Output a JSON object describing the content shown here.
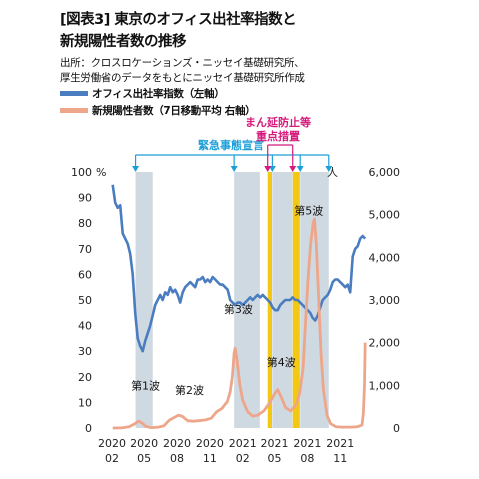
{
  "title_line1": "[図表3] 東京のオフィス出社率指数と",
  "title_line2": "新規陽性者数の推移",
  "source_line1": "出所：クロスロケーションズ・ニッセイ基礎研究所、",
  "source_line2": "厚生労働省のデータをもとにニッセイ基礎研究所作成",
  "chart_data": {
    "type": "line",
    "title": "東京のオフィス出社率指数と新規陽性者数の推移",
    "x_start": "2020-02",
    "x_end": "2022-01",
    "x_ticks": [
      {
        "date": "2020-02",
        "year": "2020",
        "month": "02"
      },
      {
        "date": "2020-05",
        "year": "2020",
        "month": "05"
      },
      {
        "date": "2020-08",
        "year": "2020",
        "month": "08"
      },
      {
        "date": "2020-11",
        "year": "2020",
        "month": "11"
      },
      {
        "date": "2021-02",
        "year": "2021",
        "month": "02"
      },
      {
        "date": "2021-05",
        "year": "2021",
        "month": "05"
      },
      {
        "date": "2021-08",
        "year": "2021",
        "month": "08"
      },
      {
        "date": "2021-11",
        "year": "2021",
        "month": "11"
      }
    ],
    "y_left": {
      "unit": "%",
      "min": 0,
      "max": 100,
      "ticks": [
        "0",
        "10",
        "20",
        "30",
        "40",
        "50",
        "60",
        "70",
        "80",
        "90",
        "100"
      ]
    },
    "y_right": {
      "unit": "人",
      "min": 0,
      "max": 6000,
      "ticks": [
        "0",
        "1,000",
        "2,000",
        "3,000",
        "4,000",
        "5,000",
        "6,000"
      ]
    },
    "grid": false,
    "series": [
      {
        "name": "オフィス出社率指数（左軸）",
        "axis": "left",
        "color": "#4a7cc0",
        "points": [
          [
            "2020-02-03",
            95
          ],
          [
            "2020-02-10",
            88
          ],
          [
            "2020-02-17",
            86
          ],
          [
            "2020-02-24",
            87
          ],
          [
            "2020-03-02",
            76
          ],
          [
            "2020-03-09",
            74
          ],
          [
            "2020-03-16",
            72
          ],
          [
            "2020-03-23",
            68
          ],
          [
            "2020-03-30",
            60
          ],
          [
            "2020-04-06",
            45
          ],
          [
            "2020-04-13",
            35
          ],
          [
            "2020-04-20",
            32
          ],
          [
            "2020-04-27",
            30
          ],
          [
            "2020-05-04",
            34
          ],
          [
            "2020-05-11",
            37
          ],
          [
            "2020-05-18",
            40
          ],
          [
            "2020-05-25",
            44
          ],
          [
            "2020-06-01",
            48
          ],
          [
            "2020-06-08",
            50
          ],
          [
            "2020-06-15",
            52
          ],
          [
            "2020-06-22",
            50
          ],
          [
            "2020-06-29",
            53
          ],
          [
            "2020-07-06",
            52
          ],
          [
            "2020-07-13",
            55
          ],
          [
            "2020-07-20",
            53
          ],
          [
            "2020-07-27",
            54
          ],
          [
            "2020-08-03",
            52
          ],
          [
            "2020-08-10",
            49
          ],
          [
            "2020-08-17",
            53
          ],
          [
            "2020-08-24",
            55
          ],
          [
            "2020-08-31",
            56
          ],
          [
            "2020-09-07",
            57
          ],
          [
            "2020-09-14",
            56
          ],
          [
            "2020-09-21",
            55
          ],
          [
            "2020-09-28",
            58
          ],
          [
            "2020-10-05",
            58
          ],
          [
            "2020-10-12",
            59
          ],
          [
            "2020-10-19",
            57
          ],
          [
            "2020-10-26",
            58
          ],
          [
            "2020-11-02",
            57
          ],
          [
            "2020-11-09",
            59
          ],
          [
            "2020-11-16",
            58
          ],
          [
            "2020-11-23",
            57
          ],
          [
            "2020-11-30",
            56
          ],
          [
            "2020-12-07",
            56
          ],
          [
            "2020-12-14",
            55
          ],
          [
            "2020-12-21",
            54
          ],
          [
            "2020-12-28",
            50
          ],
          [
            "2021-01-04",
            49
          ],
          [
            "2021-01-11",
            48
          ],
          [
            "2021-01-18",
            49
          ],
          [
            "2021-01-25",
            49
          ],
          [
            "2021-02-01",
            48
          ],
          [
            "2021-02-08",
            49
          ],
          [
            "2021-02-15",
            50
          ],
          [
            "2021-02-22",
            51
          ],
          [
            "2021-03-01",
            50
          ],
          [
            "2021-03-08",
            51
          ],
          [
            "2021-03-15",
            52
          ],
          [
            "2021-03-22",
            51
          ],
          [
            "2021-03-29",
            52
          ],
          [
            "2021-04-05",
            51
          ],
          [
            "2021-04-12",
            50
          ],
          [
            "2021-04-19",
            49
          ],
          [
            "2021-04-26",
            47
          ],
          [
            "2021-05-03",
            46
          ],
          [
            "2021-05-10",
            46
          ],
          [
            "2021-05-17",
            48
          ],
          [
            "2021-05-24",
            49
          ],
          [
            "2021-05-31",
            50
          ],
          [
            "2021-06-07",
            50
          ],
          [
            "2021-06-14",
            50
          ],
          [
            "2021-06-21",
            51
          ],
          [
            "2021-06-28",
            50
          ],
          [
            "2021-07-05",
            50
          ],
          [
            "2021-07-12",
            49
          ],
          [
            "2021-07-19",
            48
          ],
          [
            "2021-07-26",
            47
          ],
          [
            "2021-08-02",
            46
          ],
          [
            "2021-08-09",
            45
          ],
          [
            "2021-08-16",
            43
          ],
          [
            "2021-08-23",
            42
          ],
          [
            "2021-08-30",
            44
          ],
          [
            "2021-09-06",
            47
          ],
          [
            "2021-09-13",
            50
          ],
          [
            "2021-09-20",
            51
          ],
          [
            "2021-09-27",
            52
          ],
          [
            "2021-10-04",
            54
          ],
          [
            "2021-10-11",
            57
          ],
          [
            "2021-10-18",
            58
          ],
          [
            "2021-10-25",
            58
          ],
          [
            "2021-11-01",
            57
          ],
          [
            "2021-11-08",
            56
          ],
          [
            "2021-11-15",
            55
          ],
          [
            "2021-11-22",
            56
          ],
          [
            "2021-11-29",
            53
          ],
          [
            "2021-12-06",
            67
          ],
          [
            "2021-12-13",
            70
          ],
          [
            "2021-12-20",
            71
          ],
          [
            "2021-12-27",
            74
          ],
          [
            "2022-01-03",
            75
          ],
          [
            "2022-01-10",
            74
          ]
        ]
      },
      {
        "name": "新規陽性者数（7日移動平均 右軸）",
        "axis": "right",
        "color": "#eda68a",
        "points": [
          [
            "2020-02-03",
            0
          ],
          [
            "2020-03-01",
            5
          ],
          [
            "2020-03-20",
            30
          ],
          [
            "2020-04-05",
            100
          ],
          [
            "2020-04-15",
            160
          ],
          [
            "2020-04-25",
            120
          ],
          [
            "2020-05-05",
            40
          ],
          [
            "2020-05-20",
            10
          ],
          [
            "2020-06-10",
            20
          ],
          [
            "2020-06-25",
            50
          ],
          [
            "2020-07-10",
            180
          ],
          [
            "2020-07-25",
            250
          ],
          [
            "2020-08-05",
            300
          ],
          [
            "2020-08-15",
            280
          ],
          [
            "2020-08-31",
            170
          ],
          [
            "2020-09-15",
            160
          ],
          [
            "2020-10-01",
            170
          ],
          [
            "2020-10-20",
            190
          ],
          [
            "2020-11-05",
            230
          ],
          [
            "2020-11-20",
            380
          ],
          [
            "2020-12-05",
            460
          ],
          [
            "2020-12-20",
            620
          ],
          [
            "2020-12-28",
            850
          ],
          [
            "2021-01-03",
            1200
          ],
          [
            "2021-01-08",
            1750
          ],
          [
            "2021-01-11",
            1870
          ],
          [
            "2021-01-16",
            1600
          ],
          [
            "2021-01-24",
            1000
          ],
          [
            "2021-02-01",
            650
          ],
          [
            "2021-02-15",
            380
          ],
          [
            "2021-03-01",
            280
          ],
          [
            "2021-03-15",
            300
          ],
          [
            "2021-04-01",
            400
          ],
          [
            "2021-04-15",
            560
          ],
          [
            "2021-05-01",
            800
          ],
          [
            "2021-05-10",
            900
          ],
          [
            "2021-05-20",
            720
          ],
          [
            "2021-06-01",
            480
          ],
          [
            "2021-06-15",
            400
          ],
          [
            "2021-07-01",
            550
          ],
          [
            "2021-07-10",
            800
          ],
          [
            "2021-07-20",
            1400
          ],
          [
            "2021-07-27",
            2500
          ],
          [
            "2021-08-03",
            3500
          ],
          [
            "2021-08-10",
            4300
          ],
          [
            "2021-08-17",
            4800
          ],
          [
            "2021-08-21",
            4900
          ],
          [
            "2021-08-26",
            4300
          ],
          [
            "2021-09-01",
            3200
          ],
          [
            "2021-09-08",
            1800
          ],
          [
            "2021-09-15",
            900
          ],
          [
            "2021-09-25",
            300
          ],
          [
            "2021-10-05",
            100
          ],
          [
            "2021-10-20",
            30
          ],
          [
            "2021-11-05",
            20
          ],
          [
            "2021-12-01",
            20
          ],
          [
            "2021-12-20",
            30
          ],
          [
            "2022-01-01",
            70
          ],
          [
            "2022-01-05",
            350
          ],
          [
            "2022-01-08",
            1000
          ],
          [
            "2022-01-10",
            2000
          ]
        ]
      }
    ],
    "periods": [
      {
        "type": "emergency",
        "start": "2020-04-07",
        "end": "2020-05-25",
        "color": "#cfd9e2"
      },
      {
        "type": "emergency",
        "start": "2021-01-08",
        "end": "2021-03-21",
        "color": "#cfd9e2"
      },
      {
        "type": "emergency",
        "start": "2021-04-25",
        "end": "2021-06-20",
        "color": "#cfd9e2"
      },
      {
        "type": "emergency",
        "start": "2021-07-12",
        "end": "2021-09-30",
        "color": "#cfd9e2"
      },
      {
        "type": "manbo",
        "start": "2021-04-12",
        "end": "2021-04-24",
        "color": "#f3c813"
      },
      {
        "type": "manbo",
        "start": "2021-06-21",
        "end": "2021-07-11",
        "color": "#f3c813"
      }
    ],
    "annotations": {
      "emergency_label": "緊急事態宣言",
      "emergency_color": "#1c9fd8",
      "emergency_arrow_dates": [
        "2020-04-07",
        "2021-01-08",
        "2021-04-25",
        "2021-07-12",
        "2021-09-30"
      ],
      "manbo_label_line1": "まん延防止等",
      "manbo_label_line2": "重点措置",
      "manbo_color": "#d6197c",
      "manbo_arrow_dates": [
        "2021-04-12",
        "2021-06-21"
      ],
      "waves": [
        {
          "label": "第1波",
          "date": "2020-05-05",
          "value": 900
        },
        {
          "label": "第2波",
          "date": "2020-09-05",
          "value": 800
        },
        {
          "label": "第3波",
          "date": "2021-01-20",
          "value": 2700
        },
        {
          "label": "第4波",
          "date": "2021-05-20",
          "value": 1450
        },
        {
          "label": "第5波",
          "date": "2021-08-05",
          "value": 5000
        }
      ]
    }
  }
}
